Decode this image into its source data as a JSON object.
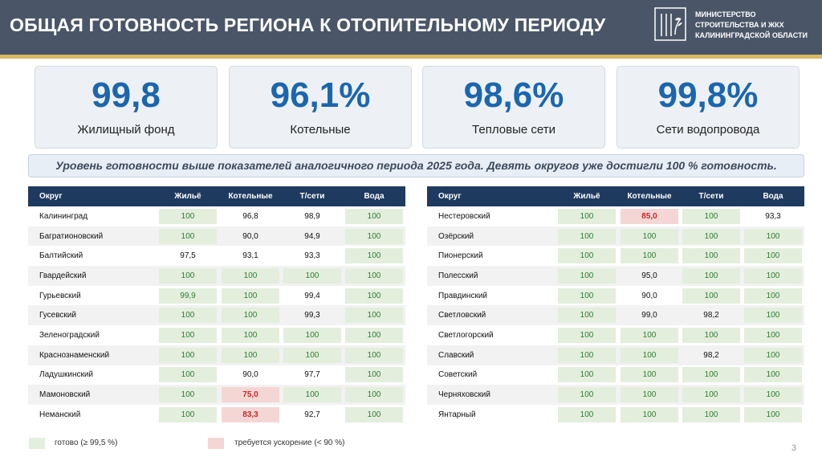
{
  "header": {
    "title": "ОБЩАЯ ГОТОВНОСТЬ РЕГИОНА К ОТОПИТЕЛЬНОМУ ПЕРИОДУ",
    "ministry_lines": [
      "МИНИСТЕРСТВО",
      "СТРОИТЕЛЬСТВА И ЖКХ",
      "КАЛИНИНГРАДСКОЙ ОБЛАСТИ"
    ]
  },
  "kpis": [
    {
      "value": "99,8",
      "label": "Жилищный фонд"
    },
    {
      "value": "96,1%",
      "label": "Котельные"
    },
    {
      "value": "98,6%",
      "label": "Тепловые сети"
    },
    {
      "value": "99,8%",
      "label": "Сети водопровода"
    }
  ],
  "banner": "Уровень готовности выше показателей аналогичного периода 2025 года. Девять округов уже достигли 100 % готовность.",
  "columns": [
    "Округ",
    "Жильё",
    "Котельные",
    "Т/сети",
    "Вода"
  ],
  "left_table": [
    {
      "name": "Калининград",
      "vals": [
        {
          "v": "100",
          "s": "ok"
        },
        {
          "v": "96,8",
          "s": ""
        },
        {
          "v": "98,9",
          "s": ""
        },
        {
          "v": "100",
          "s": "ok"
        }
      ]
    },
    {
      "name": "Багратионовский",
      "vals": [
        {
          "v": "100",
          "s": "ok"
        },
        {
          "v": "90,0",
          "s": ""
        },
        {
          "v": "94,9",
          "s": ""
        },
        {
          "v": "100",
          "s": "ok"
        }
      ]
    },
    {
      "name": "Балтийский",
      "vals": [
        {
          "v": "97,5",
          "s": ""
        },
        {
          "v": "93,1",
          "s": ""
        },
        {
          "v": "93,3",
          "s": ""
        },
        {
          "v": "100",
          "s": "ok"
        }
      ]
    },
    {
      "name": "Гвардейский",
      "vals": [
        {
          "v": "100",
          "s": "ok"
        },
        {
          "v": "100",
          "s": "ok"
        },
        {
          "v": "100",
          "s": "ok"
        },
        {
          "v": "100",
          "s": "ok"
        }
      ]
    },
    {
      "name": "Гурьевский",
      "vals": [
        {
          "v": "99,9",
          "s": "ok"
        },
        {
          "v": "100",
          "s": "ok"
        },
        {
          "v": "99,4",
          "s": ""
        },
        {
          "v": "100",
          "s": "ok"
        }
      ]
    },
    {
      "name": "Гусевский",
      "vals": [
        {
          "v": "100",
          "s": "ok"
        },
        {
          "v": "100",
          "s": "ok"
        },
        {
          "v": "99,3",
          "s": ""
        },
        {
          "v": "100",
          "s": "ok"
        }
      ]
    },
    {
      "name": "Зеленоградский",
      "vals": [
        {
          "v": "100",
          "s": "ok"
        },
        {
          "v": "100",
          "s": "ok"
        },
        {
          "v": "100",
          "s": "ok"
        },
        {
          "v": "100",
          "s": "ok"
        }
      ]
    },
    {
      "name": "Краснознаменский",
      "vals": [
        {
          "v": "100",
          "s": "ok"
        },
        {
          "v": "100",
          "s": "ok"
        },
        {
          "v": "100",
          "s": "ok"
        },
        {
          "v": "100",
          "s": "ok"
        }
      ]
    },
    {
      "name": "Ладушкинский",
      "vals": [
        {
          "v": "100",
          "s": "ok"
        },
        {
          "v": "90,0",
          "s": ""
        },
        {
          "v": "97,7",
          "s": ""
        },
        {
          "v": "100",
          "s": "ok"
        }
      ]
    },
    {
      "name": "Мамоновский",
      "vals": [
        {
          "v": "100",
          "s": "ok"
        },
        {
          "v": "75,0",
          "s": "bad"
        },
        {
          "v": "100",
          "s": "ok"
        },
        {
          "v": "100",
          "s": "ok"
        }
      ]
    },
    {
      "name": "Неманский",
      "vals": [
        {
          "v": "100",
          "s": "ok"
        },
        {
          "v": "83,3",
          "s": "bad"
        },
        {
          "v": "92,7",
          "s": ""
        },
        {
          "v": "100",
          "s": "ok"
        }
      ]
    }
  ],
  "right_table": [
    {
      "name": "Нестеровский",
      "vals": [
        {
          "v": "100",
          "s": "ok"
        },
        {
          "v": "85,0",
          "s": "bad"
        },
        {
          "v": "100",
          "s": "ok"
        },
        {
          "v": "93,3",
          "s": ""
        }
      ]
    },
    {
      "name": "Озёрский",
      "vals": [
        {
          "v": "100",
          "s": "ok"
        },
        {
          "v": "100",
          "s": "ok"
        },
        {
          "v": "100",
          "s": "ok"
        },
        {
          "v": "100",
          "s": "ok"
        }
      ]
    },
    {
      "name": "Пионерский",
      "vals": [
        {
          "v": "100",
          "s": "ok"
        },
        {
          "v": "100",
          "s": "ok"
        },
        {
          "v": "100",
          "s": "ok"
        },
        {
          "v": "100",
          "s": "ok"
        }
      ]
    },
    {
      "name": "Полесский",
      "vals": [
        {
          "v": "100",
          "s": "ok"
        },
        {
          "v": "95,0",
          "s": ""
        },
        {
          "v": "100",
          "s": "ok"
        },
        {
          "v": "100",
          "s": "ok"
        }
      ]
    },
    {
      "name": "Правдинский",
      "vals": [
        {
          "v": "100",
          "s": "ok"
        },
        {
          "v": "90,0",
          "s": ""
        },
        {
          "v": "100",
          "s": "ok"
        },
        {
          "v": "100",
          "s": "ok"
        }
      ]
    },
    {
      "name": "Светловский",
      "vals": [
        {
          "v": "100",
          "s": "ok"
        },
        {
          "v": "99,0",
          "s": ""
        },
        {
          "v": "98,2",
          "s": ""
        },
        {
          "v": "100",
          "s": "ok"
        }
      ]
    },
    {
      "name": "Светлогорский",
      "vals": [
        {
          "v": "100",
          "s": "ok"
        },
        {
          "v": "100",
          "s": "ok"
        },
        {
          "v": "100",
          "s": "ok"
        },
        {
          "v": "100",
          "s": "ok"
        }
      ]
    },
    {
      "name": "Славский",
      "vals": [
        {
          "v": "100",
          "s": "ok"
        },
        {
          "v": "100",
          "s": "ok"
        },
        {
          "v": "98,2",
          "s": ""
        },
        {
          "v": "100",
          "s": "ok"
        }
      ]
    },
    {
      "name": "Советский",
      "vals": [
        {
          "v": "100",
          "s": "ok"
        },
        {
          "v": "100",
          "s": "ok"
        },
        {
          "v": "100",
          "s": "ok"
        },
        {
          "v": "100",
          "s": "ok"
        }
      ]
    },
    {
      "name": "Черняховский",
      "vals": [
        {
          "v": "100",
          "s": "ok"
        },
        {
          "v": "100",
          "s": "ok"
        },
        {
          "v": "100",
          "s": "ok"
        },
        {
          "v": "100",
          "s": "ok"
        }
      ]
    },
    {
      "name": "Янтарный",
      "vals": [
        {
          "v": "100",
          "s": "ok"
        },
        {
          "v": "100",
          "s": "ok"
        },
        {
          "v": "100",
          "s": "ok"
        },
        {
          "v": "100",
          "s": "ok"
        }
      ]
    }
  ],
  "legend": {
    "ready": "готово (≥ 99,5 %)",
    "needs_speedup": "требуется ускорение (< 90 %)"
  },
  "colors": {
    "header": "#4a5668",
    "accent_stripe": "#d9b662",
    "kpi_value": "#1c66ad",
    "table_header": "#1f3a5f",
    "ready_fill": "#e3eedd",
    "ready_text": "#2e7d32",
    "speedup_fill": "#f4d6d4",
    "speedup_text": "#c62828"
  },
  "page_number": "3"
}
